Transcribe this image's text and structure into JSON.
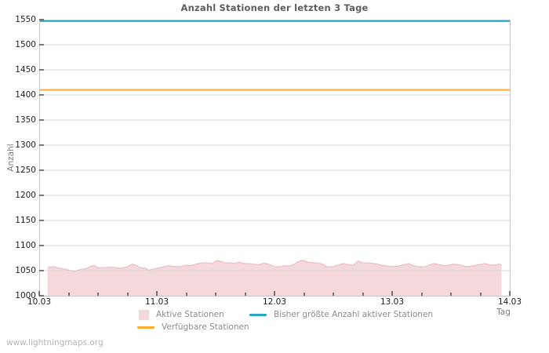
{
  "title": "Anzahl Stationen der letzten 3 Tage",
  "watermark": "www.lightningmaps.org",
  "legend": {
    "active": "Aktive Stationen",
    "max": "Bisher größte Anzahl aktiver Stationen",
    "available": "Verfügbare Stationen"
  },
  "colors": {
    "active_fill": "#f5d8db",
    "active_edge": "#e9bfc5",
    "max_line": "#2aa6c0",
    "available_line": "#fbab2e",
    "grid": "#d9d9d9",
    "border": "#c6c6c6",
    "tick": "#444444"
  },
  "chart_data": {
    "type": "area",
    "title": "Anzahl Stationen der letzten 3 Tage",
    "xlabel": "Tag",
    "ylabel": "Anzahl",
    "xlim": [
      10,
      14
    ],
    "ylim": [
      1000,
      1550
    ],
    "y_tick_step": 50,
    "x_minor_tick": 0.25,
    "grid": "horizontal",
    "legend_position": "bottom",
    "x_ticks": [
      {
        "x": 10,
        "label": "10.03"
      },
      {
        "x": 11,
        "label": "11.03"
      },
      {
        "x": 12,
        "label": "12.03"
      },
      {
        "x": 13,
        "label": "13.03"
      },
      {
        "x": 14,
        "label": "14.03"
      }
    ],
    "series": [
      {
        "name": "Aktive Stationen",
        "type": "area",
        "color": "#f5d8db",
        "edge": "#e9bfc5",
        "x": [
          10.07,
          10.12,
          10.17,
          10.22,
          10.26,
          10.3,
          10.35,
          10.4,
          10.44,
          10.47,
          10.5,
          10.55,
          10.6,
          10.65,
          10.7,
          10.75,
          10.79,
          10.82,
          10.86,
          10.9,
          10.93,
          10.97,
          11.0,
          11.05,
          11.1,
          11.15,
          11.2,
          11.25,
          11.29,
          11.33,
          11.37,
          11.42,
          11.47,
          11.51,
          11.55,
          11.58,
          11.62,
          11.66,
          11.7,
          11.74,
          11.78,
          11.82,
          11.87,
          11.91,
          11.95,
          12.0,
          12.04,
          12.08,
          12.12,
          12.16,
          12.2,
          12.24,
          12.28,
          12.33,
          12.37,
          12.41,
          12.45,
          12.5,
          12.55,
          12.59,
          12.63,
          12.67,
          12.71,
          12.75,
          12.8,
          12.84,
          12.88,
          12.92,
          12.96,
          13.0,
          13.05,
          13.1,
          13.14,
          13.18,
          13.22,
          13.27,
          13.31,
          13.35,
          13.4,
          13.44,
          13.48,
          13.52,
          13.57,
          13.61,
          13.65,
          13.7,
          13.74,
          13.78,
          13.83,
          13.87,
          13.9,
          13.93
        ],
        "values": [
          1056,
          1058,
          1055,
          1053,
          1050,
          1049,
          1052,
          1054,
          1059,
          1060,
          1056,
          1056,
          1057,
          1056,
          1055,
          1058,
          1063,
          1061,
          1056,
          1055,
          1051,
          1053,
          1055,
          1057,
          1060,
          1058,
          1058,
          1061,
          1060,
          1063,
          1065,
          1066,
          1064,
          1070,
          1068,
          1065,
          1066,
          1064,
          1067,
          1064,
          1064,
          1063,
          1062,
          1065,
          1063,
          1058,
          1057,
          1060,
          1059,
          1062,
          1068,
          1071,
          1067,
          1066,
          1065,
          1063,
          1057,
          1058,
          1062,
          1064,
          1062,
          1061,
          1069,
          1066,
          1065,
          1064,
          1063,
          1060,
          1059,
          1058,
          1059,
          1062,
          1064,
          1060,
          1058,
          1057,
          1061,
          1064,
          1062,
          1060,
          1061,
          1063,
          1062,
          1059,
          1058,
          1060,
          1062,
          1064,
          1062,
          1061,
          1063,
          1062
        ]
      },
      {
        "name": "Bisher größte Anzahl aktiver Stationen",
        "type": "hline",
        "color": "#2aa6c0",
        "value": 1547
      },
      {
        "name": "Verfügbare Stationen",
        "type": "hline",
        "color": "#fbab2e",
        "value": 1410
      }
    ]
  }
}
